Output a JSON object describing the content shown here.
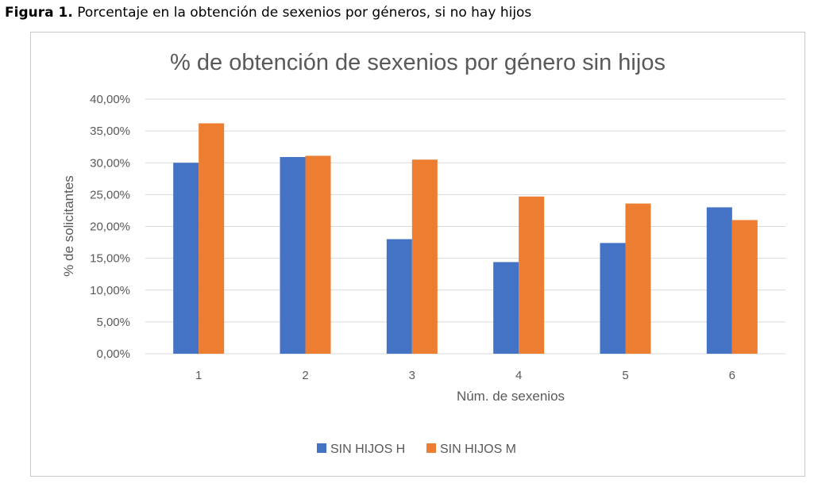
{
  "caption": {
    "label": "Figura 1.",
    "text": "Porcentaje en la obtención de sexenios por géneros, si no hay hijos"
  },
  "chart_data": {
    "type": "bar",
    "title": "% de obtención de sexenios por género sin hijos",
    "xlabel": "Núm. de sexenios",
    "ylabel": "% de solicitantes",
    "categories": [
      "1",
      "2",
      "3",
      "4",
      "5",
      "6"
    ],
    "series": [
      {
        "name": "SIN HIJOS H",
        "color": "#4472c4",
        "values": [
          30.0,
          30.9,
          18.0,
          14.4,
          17.4,
          23.0
        ]
      },
      {
        "name": "SIN HIJOS M",
        "color": "#ed7d31",
        "values": [
          36.2,
          31.1,
          30.5,
          24.7,
          23.6,
          21.0
        ]
      }
    ],
    "ylim": [
      0,
      40
    ],
    "yticks": [
      "0,00%",
      "5,00%",
      "10,00%",
      "15,00%",
      "20,00%",
      "25,00%",
      "30,00%",
      "35,00%",
      "40,00%"
    ],
    "grid": true,
    "legend_position": "bottom",
    "gridline_color": "#d9d9d9"
  }
}
